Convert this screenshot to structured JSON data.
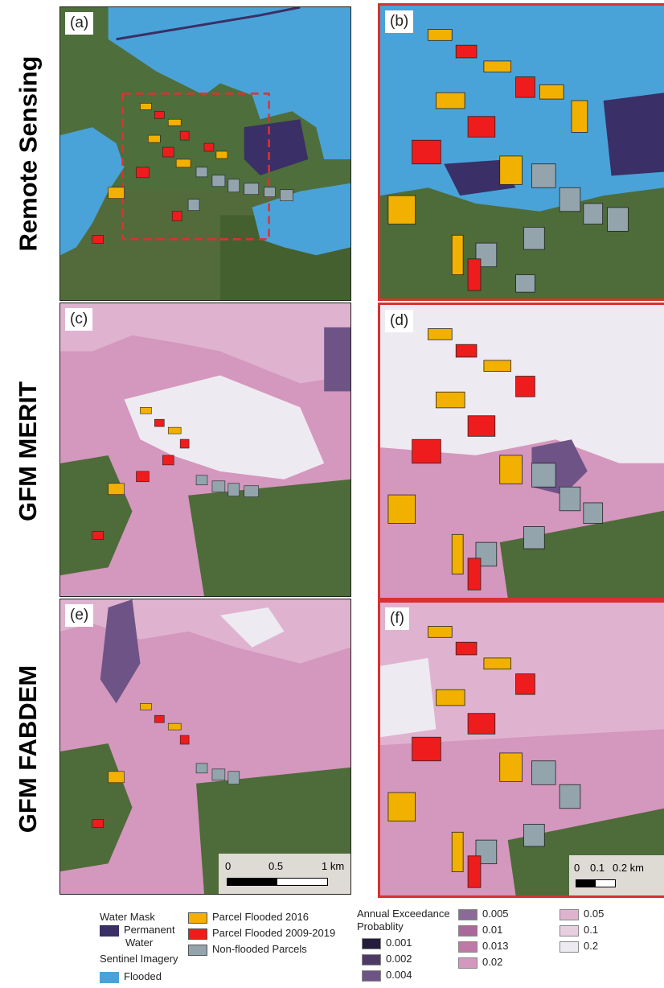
{
  "row_labels": [
    "Remote Sensing",
    "GFM MERIT",
    "GFM FABDEM"
  ],
  "panel_labels": [
    "(a)",
    "(b)",
    "(c)",
    "(d)",
    "(e)",
    "(f)"
  ],
  "scalebar_left": {
    "ticks": [
      "0",
      "0.5",
      "1 km"
    ]
  },
  "scalebar_right": {
    "ticks": [
      "0",
      "0.1",
      "0.2 km"
    ]
  },
  "legend": {
    "water_mask_title": "Water Mask",
    "permanent_water_line1": "Permanent",
    "permanent_water_line2": "Water",
    "sentinel_title": "Sentinel Imagery",
    "flooded": "Flooded",
    "parcel_2016": "Parcel Flooded 2016",
    "parcel_2009_2019": "Parcel Flooded 2009-2019",
    "non_flooded": "Non-flooded Parcels",
    "aep_title_line1": "Annual Exceedance",
    "aep_title_line2": "Probablity",
    "aep_values": [
      "0.001",
      "0.002",
      "0.004",
      "0.005",
      "0.01",
      "0.013",
      "0.02",
      "0.05",
      "0.1",
      "0.2"
    ],
    "aep_colors": [
      "#241b3d",
      "#4d3b66",
      "#6e5486",
      "#8c6a98",
      "#a9699a",
      "#bf79a7",
      "#d497bd",
      "#dfb3cf",
      "#e8cfe0",
      "#eeeaf1"
    ]
  },
  "colors": {
    "flooded_water": "#4aa3d8",
    "permanent_water": "#3a2f66",
    "parcel_2016": "#f2b100",
    "parcel_2009_2019": "#ee1c1c",
    "non_flooded": "#93a4ad",
    "panel_border_red": "#d93030"
  }
}
